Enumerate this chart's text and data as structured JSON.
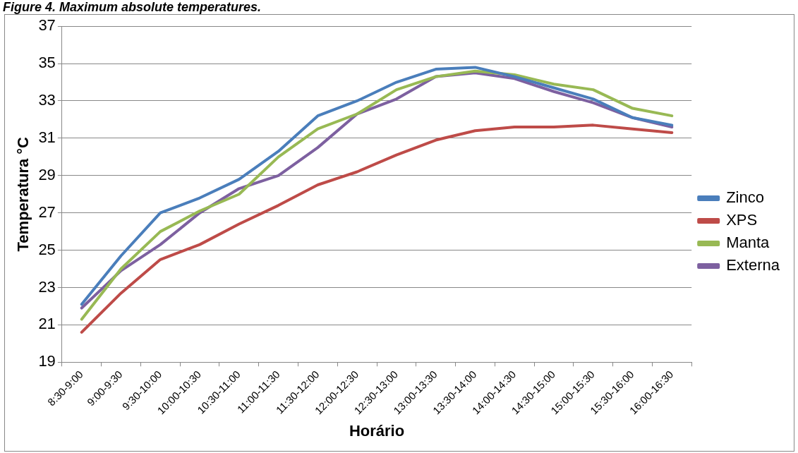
{
  "chart_data": {
    "type": "line",
    "title": "Figure 4. Maximum absolute temperatures.",
    "xlabel": "Horário",
    "ylabel": "Temperatura °C",
    "categories": [
      "8:30-9:00",
      "9:00-9:30",
      "9:30-10:00",
      "10:00-10:30",
      "10:30-11:00",
      "11:00-11:30",
      "11:30-12:00",
      "12:00-12:30",
      "12:30-13:00",
      "13:00-13:30",
      "13:30-14:00",
      "14:00-14:30",
      "14:30-15:00",
      "15:00-15:30",
      "15:30-16:00",
      "16:00-16:30"
    ],
    "series": [
      {
        "name": "Zinco",
        "color": "#4a7ebb",
        "values": [
          22.1,
          24.7,
          27.0,
          27.8,
          28.8,
          30.3,
          32.2,
          33.0,
          34.0,
          34.7,
          34.8,
          34.3,
          33.7,
          33.1,
          32.1,
          31.7
        ]
      },
      {
        "name": "XPS",
        "color": "#be4b48",
        "values": [
          20.6,
          22.7,
          24.5,
          25.3,
          26.4,
          27.4,
          28.5,
          29.2,
          30.1,
          30.9,
          31.4,
          31.6,
          31.6,
          31.7,
          31.5,
          31.3
        ]
      },
      {
        "name": "Manta",
        "color": "#98b954",
        "values": [
          21.3,
          24.0,
          26.0,
          27.1,
          28.0,
          30.0,
          31.5,
          32.3,
          33.6,
          34.3,
          34.6,
          34.4,
          33.9,
          33.6,
          32.6,
          32.2
        ]
      },
      {
        "name": "Externa",
        "color": "#7d60a0",
        "values": [
          21.9,
          23.9,
          25.3,
          27.0,
          28.3,
          29.0,
          30.5,
          32.3,
          33.1,
          34.3,
          34.5,
          34.2,
          33.5,
          32.9,
          32.1,
          31.6
        ]
      }
    ],
    "ylim": [
      19,
      37
    ],
    "yticks": [
      19,
      21,
      23,
      25,
      27,
      29,
      31,
      33,
      35,
      37
    ],
    "grid": "y",
    "legend": "right",
    "marker": "none",
    "line_style": "solid"
  }
}
